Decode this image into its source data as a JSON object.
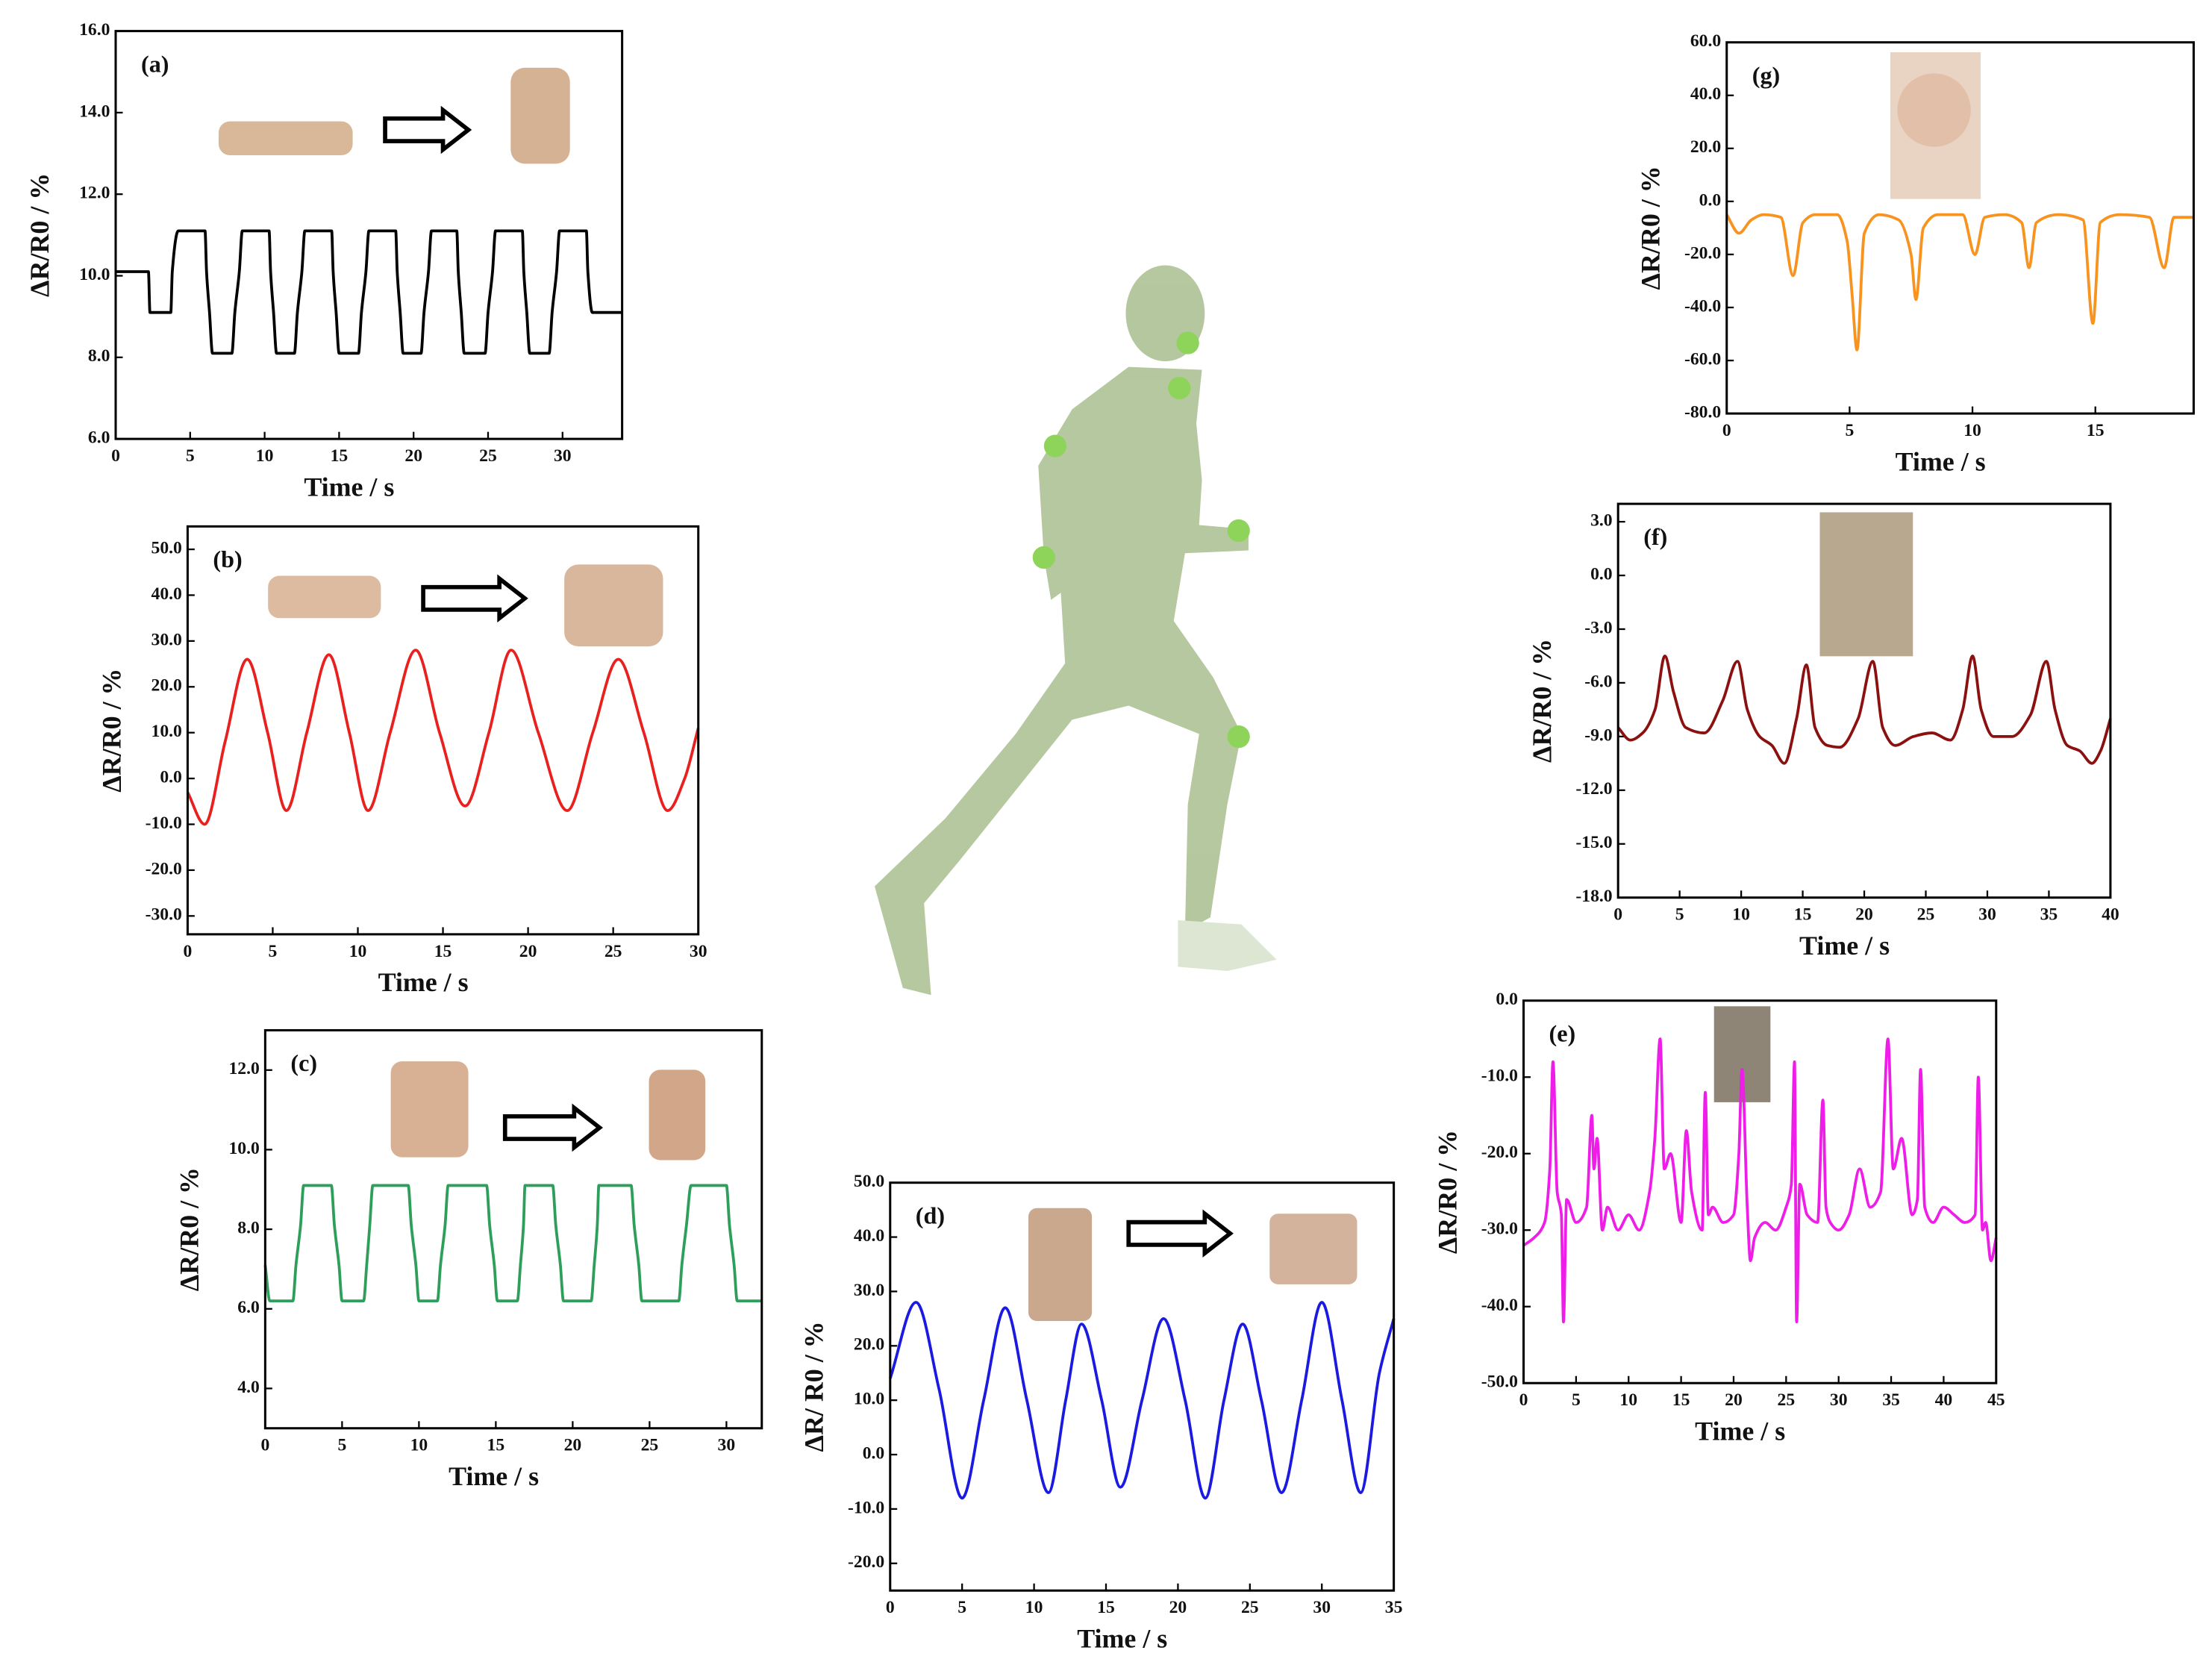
{
  "chart_data": [
    {
      "type": "line",
      "panel_label": "(a)",
      "xlabel": "Time / s",
      "ylabel": "ΔR/R0 / %",
      "color": "#000000",
      "xlim": [
        0,
        34
      ],
      "xticks": [
        0,
        5,
        10,
        15,
        20,
        25,
        30
      ],
      "ylim": [
        6,
        16
      ],
      "yticks": [
        {
          "value": 6,
          "label": "6.0"
        },
        {
          "value": 8,
          "label": "8.0"
        },
        {
          "value": 10,
          "label": "10.0"
        },
        {
          "value": 12,
          "label": "12.0"
        },
        {
          "value": 14,
          "label": "14.0"
        },
        {
          "value": 16,
          "label": "16.0"
        }
      ],
      "x": [
        0,
        2.2,
        2.3,
        3.7,
        3.8,
        4.2,
        6.0,
        6.1,
        6.3,
        6.5,
        7.8,
        8.0,
        8.3,
        8.5,
        10.3,
        10.4,
        10.6,
        10.8,
        12.0,
        12.2,
        12.5,
        12.7,
        14.5,
        14.6,
        14.8,
        15.0,
        16.3,
        16.5,
        16.8,
        17.0,
        18.8,
        18.9,
        19.1,
        19.3,
        20.5,
        20.7,
        21.0,
        21.2,
        22.9,
        23.0,
        23.2,
        23.4,
        24.8,
        25.0,
        25.3,
        25.5,
        27.3,
        27.4,
        27.6,
        27.8,
        29.1,
        29.3,
        29.6,
        29.8,
        31.6,
        31.7,
        32.0,
        34
      ],
      "values": [
        10.1,
        10.1,
        9.1,
        9.1,
        10.1,
        11.1,
        11.1,
        10.1,
        9.1,
        8.1,
        8.1,
        9.1,
        10.1,
        11.1,
        11.1,
        10.1,
        9.1,
        8.1,
        8.1,
        9.1,
        10.1,
        11.1,
        11.1,
        10.1,
        9.1,
        8.1,
        8.1,
        9.1,
        10.1,
        11.1,
        11.1,
        10.1,
        9.1,
        8.1,
        8.1,
        9.1,
        10.1,
        11.1,
        11.1,
        10.1,
        9.1,
        8.1,
        8.1,
        9.1,
        10.1,
        11.1,
        11.1,
        10.1,
        9.1,
        8.1,
        8.1,
        9.1,
        10.1,
        11.1,
        11.1,
        10.1,
        9.1,
        9.1
      ]
    },
    {
      "type": "line",
      "panel_label": "(b)",
      "xlabel": "Time / s",
      "ylabel": "ΔR/R0 / %",
      "color": "#e8201e",
      "xlim": [
        0,
        30
      ],
      "xticks": [
        0,
        5,
        10,
        15,
        20,
        25,
        30
      ],
      "ylim": [
        -34,
        55
      ],
      "yticks": [
        {
          "value": -30,
          "label": "-30.0"
        },
        {
          "value": -20,
          "label": "-20.0"
        },
        {
          "value": -10,
          "label": "-10.0"
        },
        {
          "value": 0,
          "label": "0.0"
        },
        {
          "value": 10,
          "label": "10.0"
        },
        {
          "value": 20,
          "label": "20.0"
        },
        {
          "value": 30,
          "label": "30.0"
        },
        {
          "value": 40,
          "label": "40.0"
        },
        {
          "value": 50,
          "label": "50.0"
        }
      ],
      "x": [
        0,
        1,
        2.2,
        3.5,
        4.7,
        5.8,
        7.0,
        8.3,
        9.5,
        10.6,
        11.9,
        13.4,
        14.8,
        16.3,
        17.7,
        19.0,
        20.6,
        22.3,
        23.8,
        25.3,
        26.8,
        28.2,
        29.2,
        30
      ],
      "values": [
        -3,
        -10,
        8,
        26,
        10,
        -7,
        10,
        27,
        10,
        -7,
        10,
        28,
        10,
        -6,
        10,
        28,
        10,
        -7,
        10,
        26,
        10,
        -7,
        0,
        11
      ]
    },
    {
      "type": "line",
      "panel_label": "(c)",
      "xlabel": "Time / s",
      "ylabel": "ΔR/R0 / %",
      "color": "#2e9e5b",
      "xlim": [
        0,
        32.3
      ],
      "xticks": [
        0,
        5,
        10,
        15,
        20,
        25,
        30
      ],
      "ylim": [
        3,
        13
      ],
      "yticks": [
        {
          "value": 4,
          "label": "4.0"
        },
        {
          "value": 6,
          "label": "6.0"
        },
        {
          "value": 8,
          "label": "8.0"
        },
        {
          "value": 10,
          "label": "10.0"
        },
        {
          "value": 12,
          "label": "12.0"
        }
      ],
      "x": [
        0,
        0.3,
        1.8,
        2.0,
        2.3,
        2.5,
        4.3,
        4.5,
        4.8,
        5.0,
        6.4,
        6.6,
        6.8,
        7.0,
        9.3,
        9.5,
        9.8,
        10.0,
        11.2,
        11.4,
        11.7,
        11.9,
        14.4,
        14.6,
        14.9,
        15.1,
        16.4,
        16.6,
        16.8,
        16.9,
        18.7,
        18.9,
        19.2,
        19.4,
        21.2,
        21.4,
        21.6,
        21.7,
        23.8,
        24.0,
        24.3,
        24.5,
        26.9,
        27.1,
        27.4,
        27.7,
        30.0,
        30.2,
        30.5,
        30.7,
        32.3
      ],
      "values": [
        7.1,
        6.2,
        6.2,
        7.1,
        8.1,
        9.1,
        9.1,
        8.1,
        7.1,
        6.2,
        6.2,
        7.1,
        8.1,
        9.1,
        9.1,
        8.1,
        7.1,
        6.2,
        6.2,
        7.1,
        8.1,
        9.1,
        9.1,
        8.1,
        7.1,
        6.2,
        6.2,
        7.1,
        8.1,
        9.1,
        9.1,
        8.1,
        7.1,
        6.2,
        6.2,
        7.1,
        8.1,
        9.1,
        9.1,
        8.1,
        7.1,
        6.2,
        6.2,
        7.1,
        8.1,
        9.1,
        9.1,
        8.1,
        7.1,
        6.2,
        6.2
      ]
    },
    {
      "type": "line",
      "panel_label": "(d)",
      "xlabel": "Time / s",
      "ylabel": "ΔR/ R0 / %",
      "color": "#1a1ae0",
      "xlim": [
        0,
        35
      ],
      "xticks": [
        0,
        5,
        10,
        15,
        20,
        25,
        30,
        35
      ],
      "ylim": [
        -25,
        50
      ],
      "yticks": [
        {
          "value": -20,
          "label": "-20.0"
        },
        {
          "value": -10,
          "label": "-10.0"
        },
        {
          "value": 0,
          "label": "0.0"
        },
        {
          "value": 10,
          "label": "10.0"
        },
        {
          "value": 20,
          "label": "20.0"
        },
        {
          "value": 30,
          "label": "30.0"
        },
        {
          "value": 40,
          "label": "40.0"
        },
        {
          "value": 50,
          "label": "50.0"
        }
      ],
      "x": [
        0,
        1.8,
        3.4,
        5.0,
        6.5,
        8.0,
        9.5,
        11.0,
        12.2,
        13.3,
        14.7,
        16.0,
        17.5,
        19.0,
        20.5,
        21.9,
        23.2,
        24.5,
        25.8,
        27.2,
        28.6,
        30.0,
        31.4,
        32.7,
        34.0,
        35
      ],
      "values": [
        14,
        28,
        12,
        -8,
        10,
        27,
        10,
        -7,
        10,
        24,
        10,
        -6,
        10,
        25,
        10,
        -8,
        10,
        24,
        10,
        -7,
        10,
        28,
        10,
        -7,
        15,
        25
      ]
    },
    {
      "type": "line",
      "panel_label": "(e)",
      "xlabel": "Time / s",
      "ylabel": "ΔR/R0 / %",
      "color": "#ee1ee8",
      "xlim": [
        0,
        45
      ],
      "xticks": [
        0,
        5,
        10,
        15,
        20,
        25,
        30,
        35,
        40,
        45
      ],
      "ylim": [
        -50,
        0
      ],
      "yticks": [
        {
          "value": -50,
          "label": "-50.0"
        },
        {
          "value": -40,
          "label": "-40.0"
        },
        {
          "value": -30,
          "label": "-30.0"
        },
        {
          "value": -20,
          "label": "-20.0"
        },
        {
          "value": -10,
          "label": "-10.0"
        },
        {
          "value": 0,
          "label": "0.0"
        }
      ],
      "x": [
        0,
        1,
        2,
        2.5,
        2.8,
        3.2,
        3.6,
        3.8,
        4.1,
        5,
        6,
        6.5,
        6.7,
        7,
        7.5,
        8,
        9,
        10,
        11,
        12,
        12.5,
        13,
        13.4,
        14,
        15,
        15.5,
        16,
        17,
        17.3,
        17.6,
        18,
        19,
        20,
        20.5,
        20.8,
        21.3,
        21.6,
        22,
        23,
        24,
        25,
        25.5,
        25.8,
        26,
        26.3,
        27,
        28,
        28.5,
        28.8,
        29.2,
        30,
        31,
        32,
        33,
        34,
        34.7,
        35.2,
        36,
        37,
        37.5,
        37.8,
        38.2,
        39,
        40,
        41,
        42,
        43,
        43.3,
        43.7,
        44,
        44.5,
        45
      ],
      "values": [
        -32,
        -31,
        -29,
        -22,
        -8,
        -25,
        -28,
        -42,
        -26,
        -29,
        -27,
        -15,
        -22,
        -18,
        -30,
        -27,
        -30,
        -28,
        -30,
        -25,
        -18,
        -5,
        -22,
        -20,
        -29,
        -17,
        -25,
        -30,
        -12,
        -28,
        -27,
        -29,
        -28,
        -20,
        -9,
        -27,
        -34,
        -31,
        -29,
        -30,
        -27,
        -24,
        -8,
        -42,
        -24,
        -28,
        -29,
        -13,
        -27,
        -29,
        -30,
        -28,
        -22,
        -27,
        -25,
        -5,
        -22,
        -18,
        -28,
        -26,
        -9,
        -27,
        -29,
        -27,
        -28,
        -29,
        -28,
        -10,
        -30,
        -29,
        -34,
        -31
      ]
    },
    {
      "type": "line",
      "panel_label": "(f)",
      "xlabel": "Time / s",
      "ylabel": "ΔR/R0 / %",
      "color": "#8b1010",
      "xlim": [
        0,
        40
      ],
      "xticks": [
        0,
        5,
        10,
        15,
        20,
        25,
        30,
        35,
        40
      ],
      "ylim": [
        -18,
        4
      ],
      "yticks": [
        {
          "value": -18,
          "label": "-18.0"
        },
        {
          "value": -15,
          "label": "-15.0"
        },
        {
          "value": -12,
          "label": "-12.0"
        },
        {
          "value": -9,
          "label": "-9.0"
        },
        {
          "value": -6,
          "label": "-6.0"
        },
        {
          "value": -3,
          "label": "-3.0"
        },
        {
          "value": 0,
          "label": "0.0"
        },
        {
          "value": 3,
          "label": "3.0"
        }
      ],
      "x": [
        0,
        1,
        2,
        3,
        3.8,
        4.5,
        5.5,
        7,
        8.5,
        9.7,
        10.5,
        11.5,
        12.5,
        13.5,
        14.5,
        15.3,
        16,
        17,
        18,
        19.5,
        20.7,
        21.5,
        22.5,
        24,
        25.5,
        27,
        28,
        28.8,
        29.5,
        30.5,
        32,
        33.5,
        34.8,
        35.5,
        36.5,
        37.5,
        38.5,
        39.2,
        40
      ],
      "values": [
        -8.5,
        -9.2,
        -8.8,
        -7.5,
        -4.5,
        -6.5,
        -8.5,
        -8.8,
        -7.0,
        -4.8,
        -7.5,
        -9.0,
        -9.5,
        -10.5,
        -8.0,
        -5.0,
        -8.5,
        -9.5,
        -9.6,
        -8.0,
        -4.8,
        -8.5,
        -9.5,
        -9.0,
        -8.8,
        -9.2,
        -7.5,
        -4.5,
        -7.5,
        -9.0,
        -9.0,
        -7.8,
        -4.8,
        -7.5,
        -9.5,
        -9.8,
        -10.5,
        -9.8,
        -8.0
      ]
    },
    {
      "type": "line",
      "panel_label": "(g)",
      "xlabel": "Time / s",
      "ylabel": "ΔR/R0 / %",
      "color": "#f7931e",
      "xlim": [
        0,
        19
      ],
      "xticks": [
        0,
        5,
        10,
        15
      ],
      "ylim": [
        -80,
        60
      ],
      "yticks": [
        {
          "value": -80,
          "label": "-80.0"
        },
        {
          "value": -60,
          "label": "-60.0"
        },
        {
          "value": -40,
          "label": "-40.0"
        },
        {
          "value": -20,
          "label": "-20.0"
        },
        {
          "value": 0,
          "label": "0.0"
        },
        {
          "value": 20,
          "label": "20.0"
        },
        {
          "value": 40,
          "label": "40.0"
        },
        {
          "value": 60,
          "label": "60.0"
        }
      ],
      "x": [
        0,
        0.5,
        1,
        1.5,
        2.2,
        2.7,
        3.1,
        3.6,
        4.5,
        4.9,
        5.1,
        5.3,
        5.6,
        6.2,
        7.0,
        7.5,
        7.7,
        8.0,
        8.6,
        9.6,
        10.1,
        10.5,
        11.3,
        12.0,
        12.3,
        12.6,
        13.5,
        14.5,
        14.9,
        15.2,
        16.0,
        17.2,
        17.8,
        18.2,
        19
      ],
      "values": [
        -5,
        -12,
        -7,
        -5,
        -6,
        -28,
        -8,
        -5,
        -5,
        -15,
        -35,
        -56,
        -12,
        -5,
        -7,
        -20,
        -37,
        -10,
        -5,
        -5,
        -20,
        -6,
        -5,
        -8,
        -25,
        -8,
        -5,
        -7,
        -46,
        -8,
        -5,
        -6,
        -25,
        -6,
        -6
      ]
    }
  ]
}
